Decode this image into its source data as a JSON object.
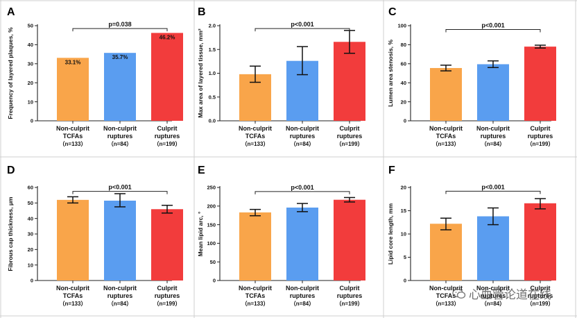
{
  "chart_data": [
    {
      "panel": "A",
      "type": "bar",
      "ylabel": "Frequency of layered plaques, %",
      "ylim": [
        0,
        50
      ],
      "yticks": [
        0,
        10,
        20,
        30,
        40,
        50
      ],
      "categories": [
        "Non-culprit TCFAs",
        "Non-culprit ruptures",
        "Culprit ruptures"
      ],
      "category_lines": [
        [
          "Non-culprit",
          "TCFAs"
        ],
        [
          "Non-culprit",
          "ruptures"
        ],
        [
          "Culprit",
          "ruptures"
        ]
      ],
      "n_labels": [
        "（n=133）",
        "（n=84）",
        "（n=199）"
      ],
      "values": [
        33.1,
        35.7,
        46.2
      ],
      "data_labels": [
        "33.1%",
        "35.7%",
        "46.2%"
      ],
      "error_bars": null,
      "p_value": "p=0.038",
      "p_y": 48.5,
      "colors": [
        "#f9a54a",
        "#5a9df0",
        "#f23c3c"
      ]
    },
    {
      "panel": "B",
      "type": "bar",
      "ylabel": "Max area of layered tissue, mm²",
      "ylim": [
        0,
        2.0
      ],
      "yticks": [
        0.0,
        0.5,
        1.0,
        1.5,
        2.0
      ],
      "ytick_labels": [
        "0.0",
        "0.5",
        "1.0",
        "1.5",
        "2.0"
      ],
      "categories": [
        "Non-culprit TCFAs",
        "Non-culprit ruptures",
        "Culprit ruptures"
      ],
      "category_lines": [
        [
          "Non-culprit",
          "TCFAs"
        ],
        [
          "Non-culprit",
          "ruptures"
        ],
        [
          "Culprit",
          "ruptures"
        ]
      ],
      "n_labels": [
        "（n=133）",
        "（n=84）",
        "（n=199）"
      ],
      "values": [
        0.98,
        1.26,
        1.66
      ],
      "error_bars": [
        [
          0.81,
          1.15
        ],
        [
          0.97,
          1.56
        ],
        [
          1.42,
          1.9
        ]
      ],
      "p_value": "p<0.001",
      "p_y": 1.94,
      "colors": [
        "#f9a54a",
        "#5a9df0",
        "#f23c3c"
      ]
    },
    {
      "panel": "C",
      "type": "bar",
      "ylabel": "Lumen area stenosis, %",
      "ylim": [
        0,
        100
      ],
      "yticks": [
        0,
        20,
        40,
        60,
        80,
        100
      ],
      "categories": [
        "Non-culprit TCFAs",
        "Non-culprit ruptures",
        "Culprit ruptures"
      ],
      "category_lines": [
        [
          "Non-culprit",
          "TCFAs"
        ],
        [
          "Non-culprit",
          "ruptures"
        ],
        [
          "Culprit",
          "ruptures"
        ]
      ],
      "n_labels": [
        "（n=133）",
        "（n=84）",
        "（n=199）"
      ],
      "values": [
        55.5,
        59.5,
        78.0
      ],
      "error_bars": [
        [
          52.5,
          58.5
        ],
        [
          56.0,
          63.0
        ],
        [
          76.5,
          79.5
        ]
      ],
      "p_value": "p<0.001",
      "p_y": 96,
      "colors": [
        "#f9a54a",
        "#5a9df0",
        "#f23c3c"
      ]
    },
    {
      "panel": "D",
      "type": "bar",
      "ylabel": "Fibrous cap thickness, μm",
      "ylim": [
        0,
        60
      ],
      "yticks": [
        0,
        10,
        20,
        30,
        40,
        50,
        60
      ],
      "categories": [
        "Non-culprit TCFAs",
        "Non-culprit ruptures",
        "Culprit ruptures"
      ],
      "category_lines": [
        [
          "Non-culprit",
          "TCFAs"
        ],
        [
          "Non-culprit",
          "ruptures"
        ],
        [
          "Culprit",
          "ruptures"
        ]
      ],
      "n_labels": [
        "（n=133）",
        "（n=84）",
        "（n=199）"
      ],
      "values": [
        52,
        51.5,
        46
      ],
      "error_bars": [
        [
          50,
          54
        ],
        [
          47.5,
          56
        ],
        [
          43.5,
          48.5
        ]
      ],
      "p_value": "p<0.001",
      "p_y": 57.5,
      "colors": [
        "#f9a54a",
        "#5a9df0",
        "#f23c3c"
      ]
    },
    {
      "panel": "E",
      "type": "bar",
      "ylabel": "Mean lipid arc, °",
      "ylim": [
        0,
        250
      ],
      "yticks": [
        0,
        50,
        100,
        150,
        200,
        250
      ],
      "categories": [
        "Non-culprit TCFAs",
        "Non-culprit ruptures",
        "Culprit ruptures"
      ],
      "category_lines": [
        [
          "Non-culprit",
          "TCFAs"
        ],
        [
          "Non-culprit",
          "ruptures"
        ],
        [
          "Culprit",
          "ruptures"
        ]
      ],
      "n_labels": [
        "（n=133）",
        "（n=84）",
        "（n=199）"
      ],
      "values": [
        183,
        196,
        217
      ],
      "error_bars": [
        [
          174,
          191
        ],
        [
          185,
          207
        ],
        [
          211,
          223
        ]
      ],
      "p_value": "p<0.001",
      "p_y": 239,
      "colors": [
        "#f9a54a",
        "#5a9df0",
        "#f23c3c"
      ]
    },
    {
      "panel": "F",
      "type": "bar",
      "ylabel": "Lipid core length, mm",
      "ylim": [
        0,
        20
      ],
      "yticks": [
        0,
        5,
        10,
        15,
        20
      ],
      "categories": [
        "Non-culprit TCFAs",
        "Non-culprit ruptures",
        "Culprit ruptures"
      ],
      "category_lines": [
        [
          "Non-culprit",
          "TCFAs"
        ],
        [
          "Non-culprit",
          "ruptures"
        ],
        [
          "Culprit",
          "ruptures"
        ]
      ],
      "n_labels": [
        "（n=133）",
        "（n=84）",
        "（n=199）"
      ],
      "values": [
        12.2,
        13.8,
        16.6
      ],
      "error_bars": [
        [
          10.9,
          13.4
        ],
        [
          12.0,
          15.6
        ],
        [
          15.4,
          17.6
        ]
      ],
      "p_value": "p<0.001",
      "p_y": 19.2,
      "colors": [
        "#f9a54a",
        "#5a9df0",
        "#f23c3c"
      ]
    }
  ],
  "watermark": {
    "text": "心血管论道在线",
    "icon": "wechat-icon"
  }
}
